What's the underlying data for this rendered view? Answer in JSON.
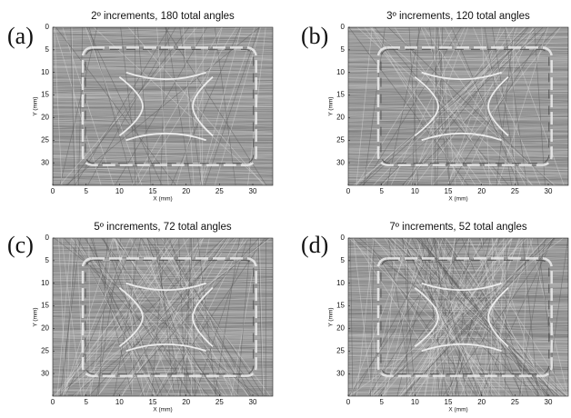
{
  "figure": {
    "panels": [
      {
        "label": "(a)",
        "title": "2º increments, 180 total angles",
        "xlabel": "X (mm)",
        "ylabel": "Y (mm)",
        "xlim": [
          0,
          33
        ],
        "ylim": [
          0,
          35
        ],
        "y_inverted": true,
        "xticks": [
          0,
          5,
          10,
          15,
          20,
          25,
          30
        ],
        "yticks": [
          0,
          5,
          10,
          15,
          20,
          25,
          30
        ]
      },
      {
        "label": "(b)",
        "title": "3º increments, 120 total angles",
        "xlabel": "X (mm)",
        "ylabel": "Y (mm)",
        "xlim": [
          0,
          33
        ],
        "ylim": [
          0,
          35
        ],
        "y_inverted": true,
        "xticks": [
          0,
          5,
          10,
          15,
          20,
          25,
          30
        ],
        "yticks": [
          0,
          5,
          10,
          15,
          20,
          25,
          30
        ]
      },
      {
        "label": "(c)",
        "title": "5º increments, 72 total angles",
        "xlabel": "X (mm)",
        "ylabel": "Y (mm)",
        "xlim": [
          0,
          33
        ],
        "ylim": [
          0,
          35
        ],
        "y_inverted": true,
        "xticks": [
          0,
          5,
          10,
          15,
          20,
          25,
          30
        ],
        "yticks": [
          0,
          5,
          10,
          15,
          20,
          25,
          30
        ]
      },
      {
        "label": "(d)",
        "title": "7º increments, 52 total angles",
        "xlabel": "X (mm)",
        "ylabel": "Y (mm)",
        "xlim": [
          0,
          33
        ],
        "ylim": [
          0,
          35
        ],
        "y_inverted": true,
        "xticks": [
          0,
          5,
          10,
          15,
          20,
          25,
          30
        ],
        "yticks": [
          0,
          5,
          10,
          15,
          20,
          25,
          30
        ]
      }
    ]
  }
}
